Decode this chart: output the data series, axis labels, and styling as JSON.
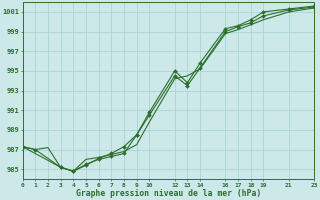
{
  "xlabel": "Graphe pression niveau de la mer (hPa)",
  "background_color": "#cce8e8",
  "grid_color": "#aad4d4",
  "line_color": "#2d6e2d",
  "xlim": [
    0,
    23
  ],
  "ylim": [
    984.0,
    1002.0
  ],
  "yticks": [
    985,
    987,
    989,
    991,
    993,
    995,
    997,
    999,
    1001
  ],
  "xtick_pos": [
    0,
    1,
    2,
    3,
    4,
    5,
    6,
    7,
    8,
    9,
    10,
    12,
    13,
    14,
    16,
    17,
    18,
    19,
    21,
    23
  ],
  "xtick_labels": [
    "0",
    "1",
    "2",
    "3",
    "4",
    "5",
    "6",
    "7",
    "8",
    "9",
    "10",
    "12",
    "13",
    "14",
    "16",
    "17",
    "18",
    "19",
    "21",
    "23"
  ],
  "s1_x": [
    0,
    1,
    2,
    3,
    4,
    5,
    6,
    7,
    8,
    9,
    10,
    12,
    13,
    14,
    16,
    17,
    18,
    19,
    21,
    23
  ],
  "s1_y": [
    987.3,
    987.0,
    987.2,
    985.2,
    984.8,
    986.0,
    986.2,
    986.5,
    986.8,
    987.5,
    989.8,
    994.2,
    994.5,
    995.2,
    998.8,
    999.2,
    999.7,
    1000.2,
    1001.0,
    1001.4
  ],
  "s2_x": [
    0,
    1,
    3,
    4,
    5,
    6,
    7,
    8,
    9,
    10,
    12,
    13,
    14,
    16,
    17,
    18,
    19,
    21,
    23
  ],
  "s2_y": [
    987.3,
    987.0,
    985.2,
    984.8,
    985.5,
    986.0,
    986.3,
    986.6,
    988.5,
    990.5,
    994.5,
    993.5,
    995.3,
    999.0,
    999.5,
    999.9,
    1000.6,
    1001.2,
    1001.5
  ],
  "s3_x": [
    0,
    3,
    4,
    5,
    6,
    7,
    8,
    9,
    10,
    12,
    13,
    14,
    16,
    17,
    18,
    19,
    21,
    23
  ],
  "s3_y": [
    987.3,
    985.2,
    984.8,
    985.4,
    986.1,
    986.6,
    987.3,
    988.5,
    990.8,
    995.0,
    993.8,
    995.8,
    999.3,
    999.6,
    1000.2,
    1001.0,
    1001.3,
    1001.6
  ]
}
